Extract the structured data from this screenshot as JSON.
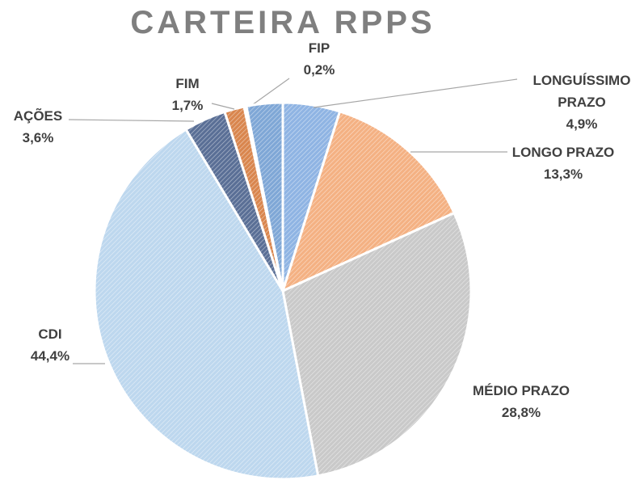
{
  "chart_data": {
    "type": "pie",
    "title": "CARTEIRA RPPS",
    "categories": [
      "LONGUÍSSIMO PRAZO",
      "LONGO PRAZO",
      "MÉDIO PRAZO",
      "CDI",
      "AÇÕES",
      "FIM",
      "FIP",
      null
    ],
    "values": [
      4.9,
      13.3,
      28.8,
      44.4,
      3.6,
      1.7,
      0.2,
      3.1
    ],
    "value_labels": [
      "4,9%",
      "13,3%",
      "28,8%",
      "44,4%",
      "3,6%",
      "1,7%",
      "0,2%",
      null
    ],
    "colors": [
      "#8fb4e3",
      "#f4b183",
      "#c9c9c9",
      "#bdd7ee",
      "#5a6f96",
      "#d9864e",
      "#a5a5a5",
      "#7fa7d6"
    ]
  }
}
